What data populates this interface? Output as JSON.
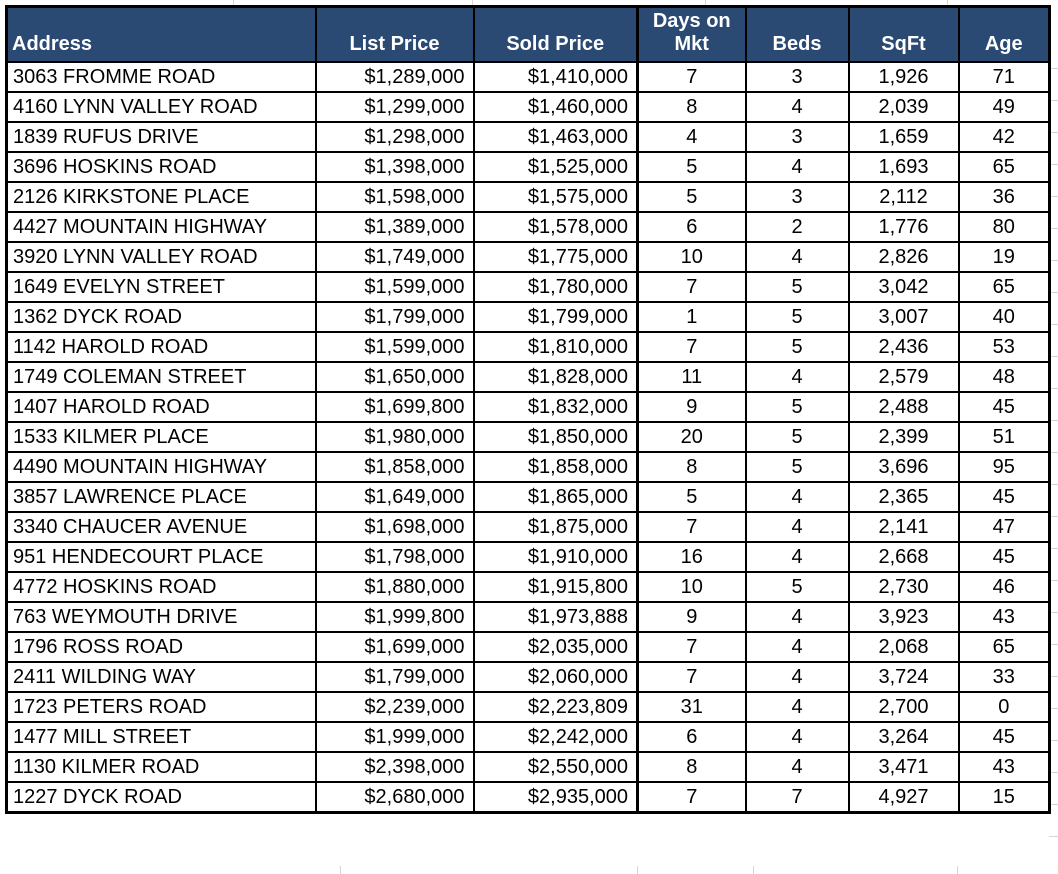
{
  "app": {
    "name": "spreadsheet-real-estate-listings"
  },
  "colors": {
    "header_bg": "#2a4a74",
    "header_text": "#ffffff",
    "border": "#000000",
    "body_text": "#000000",
    "gridline": "#d6d6d6"
  },
  "table": {
    "columns": [
      {
        "key": "address",
        "label": "Address"
      },
      {
        "key": "list_price",
        "label": "List Price"
      },
      {
        "key": "sold_price",
        "label": "Sold Price"
      },
      {
        "key": "days_on_mkt",
        "label": "Days on Mkt"
      },
      {
        "key": "beds",
        "label": "Beds"
      },
      {
        "key": "sqft",
        "label": "SqFt"
      },
      {
        "key": "age",
        "label": "Age"
      }
    ],
    "rows": [
      {
        "address": "3063 FROMME ROAD",
        "list_price": "$1,289,000",
        "sold_price": "$1,410,000",
        "days_on_mkt": "7",
        "beds": "3",
        "sqft": "1,926",
        "age": "71"
      },
      {
        "address": "4160 LYNN VALLEY ROAD",
        "list_price": "$1,299,000",
        "sold_price": "$1,460,000",
        "days_on_mkt": "8",
        "beds": "4",
        "sqft": "2,039",
        "age": "49"
      },
      {
        "address": "1839 RUFUS DRIVE",
        "list_price": "$1,298,000",
        "sold_price": "$1,463,000",
        "days_on_mkt": "4",
        "beds": "3",
        "sqft": "1,659",
        "age": "42"
      },
      {
        "address": "3696 HOSKINS ROAD",
        "list_price": "$1,398,000",
        "sold_price": "$1,525,000",
        "days_on_mkt": "5",
        "beds": "4",
        "sqft": "1,693",
        "age": "65"
      },
      {
        "address": "2126 KIRKSTONE PLACE",
        "list_price": "$1,598,000",
        "sold_price": "$1,575,000",
        "days_on_mkt": "5",
        "beds": "3",
        "sqft": "2,112",
        "age": "36"
      },
      {
        "address": "4427 MOUNTAIN HIGHWAY",
        "list_price": "$1,389,000",
        "sold_price": "$1,578,000",
        "days_on_mkt": "6",
        "beds": "2",
        "sqft": "1,776",
        "age": "80"
      },
      {
        "address": "3920 LYNN VALLEY ROAD",
        "list_price": "$1,749,000",
        "sold_price": "$1,775,000",
        "days_on_mkt": "10",
        "beds": "4",
        "sqft": "2,826",
        "age": "19"
      },
      {
        "address": "1649 EVELYN STREET",
        "list_price": "$1,599,000",
        "sold_price": "$1,780,000",
        "days_on_mkt": "7",
        "beds": "5",
        "sqft": "3,042",
        "age": "65"
      },
      {
        "address": "1362 DYCK ROAD",
        "list_price": "$1,799,000",
        "sold_price": "$1,799,000",
        "days_on_mkt": "1",
        "beds": "5",
        "sqft": "3,007",
        "age": "40"
      },
      {
        "address": "1142 HAROLD ROAD",
        "list_price": "$1,599,000",
        "sold_price": "$1,810,000",
        "days_on_mkt": "7",
        "beds": "5",
        "sqft": "2,436",
        "age": "53"
      },
      {
        "address": "1749 COLEMAN STREET",
        "list_price": "$1,650,000",
        "sold_price": "$1,828,000",
        "days_on_mkt": "11",
        "beds": "4",
        "sqft": "2,579",
        "age": "48"
      },
      {
        "address": "1407 HAROLD ROAD",
        "list_price": "$1,699,800",
        "sold_price": "$1,832,000",
        "days_on_mkt": "9",
        "beds": "5",
        "sqft": "2,488",
        "age": "45"
      },
      {
        "address": "1533 KILMER PLACE",
        "list_price": "$1,980,000",
        "sold_price": "$1,850,000",
        "days_on_mkt": "20",
        "beds": "5",
        "sqft": "2,399",
        "age": "51"
      },
      {
        "address": "4490 MOUNTAIN HIGHWAY",
        "list_price": "$1,858,000",
        "sold_price": "$1,858,000",
        "days_on_mkt": "8",
        "beds": "5",
        "sqft": "3,696",
        "age": "95"
      },
      {
        "address": "3857 LAWRENCE PLACE",
        "list_price": "$1,649,000",
        "sold_price": "$1,865,000",
        "days_on_mkt": "5",
        "beds": "4",
        "sqft": "2,365",
        "age": "45"
      },
      {
        "address": "3340 CHAUCER AVENUE",
        "list_price": "$1,698,000",
        "sold_price": "$1,875,000",
        "days_on_mkt": "7",
        "beds": "4",
        "sqft": "2,141",
        "age": "47"
      },
      {
        "address": "951 HENDECOURT PLACE",
        "list_price": "$1,798,000",
        "sold_price": "$1,910,000",
        "days_on_mkt": "16",
        "beds": "4",
        "sqft": "2,668",
        "age": "45"
      },
      {
        "address": "4772 HOSKINS ROAD",
        "list_price": "$1,880,000",
        "sold_price": "$1,915,800",
        "days_on_mkt": "10",
        "beds": "5",
        "sqft": "2,730",
        "age": "46"
      },
      {
        "address": "763 WEYMOUTH DRIVE",
        "list_price": "$1,999,800",
        "sold_price": "$1,973,888",
        "days_on_mkt": "9",
        "beds": "4",
        "sqft": "3,923",
        "age": "43"
      },
      {
        "address": "1796 ROSS ROAD",
        "list_price": "$1,699,000",
        "sold_price": "$2,035,000",
        "days_on_mkt": "7",
        "beds": "4",
        "sqft": "2,068",
        "age": "65"
      },
      {
        "address": "2411 WILDING WAY",
        "list_price": "$1,799,000",
        "sold_price": "$2,060,000",
        "days_on_mkt": "7",
        "beds": "4",
        "sqft": "3,724",
        "age": "33"
      },
      {
        "address": "1723 PETERS ROAD",
        "list_price": "$2,239,000",
        "sold_price": "$2,223,809",
        "days_on_mkt": "31",
        "beds": "4",
        "sqft": "2,700",
        "age": "0"
      },
      {
        "address": "1477 MILL STREET",
        "list_price": "$1,999,000",
        "sold_price": "$2,242,000",
        "days_on_mkt": "6",
        "beds": "4",
        "sqft": "3,264",
        "age": "45"
      },
      {
        "address": "1130 KILMER ROAD",
        "list_price": "$2,398,000",
        "sold_price": "$2,550,000",
        "days_on_mkt": "8",
        "beds": "4",
        "sqft": "3,471",
        "age": "43"
      },
      {
        "address": "1227 DYCK ROAD",
        "list_price": "$2,680,000",
        "sold_price": "$2,935,000",
        "days_on_mkt": "7",
        "beds": "7",
        "sqft": "4,927",
        "age": "15"
      }
    ]
  }
}
